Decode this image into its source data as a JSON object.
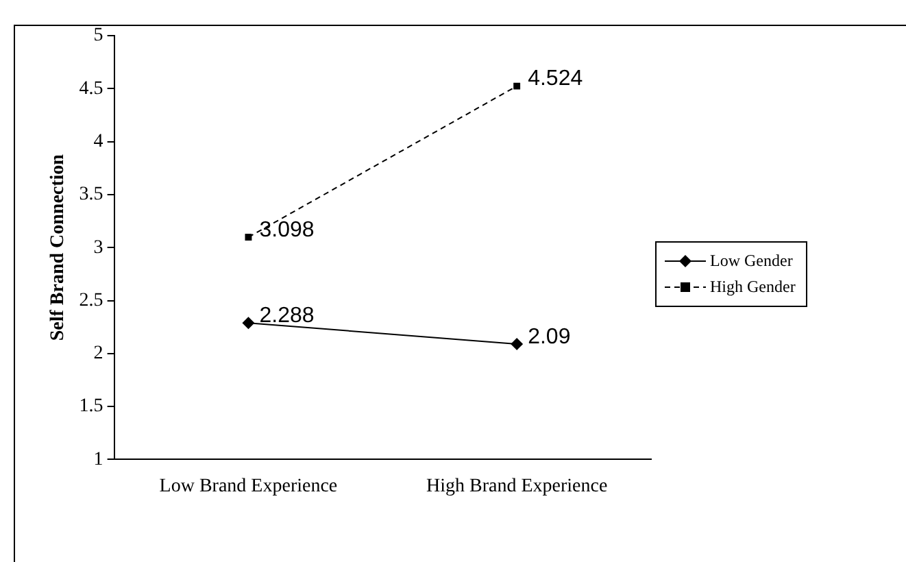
{
  "chart_data": {
    "type": "line",
    "ylabel": "Self Brand Connection",
    "categories": [
      "Low Brand Experience",
      "High Brand Experience"
    ],
    "series": [
      {
        "name": "Low Gender",
        "color": "#000000",
        "values": [
          2.288,
          2.09
        ],
        "marker": "diamond",
        "line_style": "solid"
      },
      {
        "name": "High Gender",
        "color": "#000000",
        "values": [
          3.098,
          4.524
        ],
        "marker": "square",
        "line_style": "dashed"
      }
    ],
    "ylim": [
      1,
      5
    ],
    "yticks": [
      1,
      1.5,
      2,
      2.5,
      3,
      3.5,
      4,
      4.5,
      5
    ],
    "legend": "right",
    "data_labels": true
  }
}
